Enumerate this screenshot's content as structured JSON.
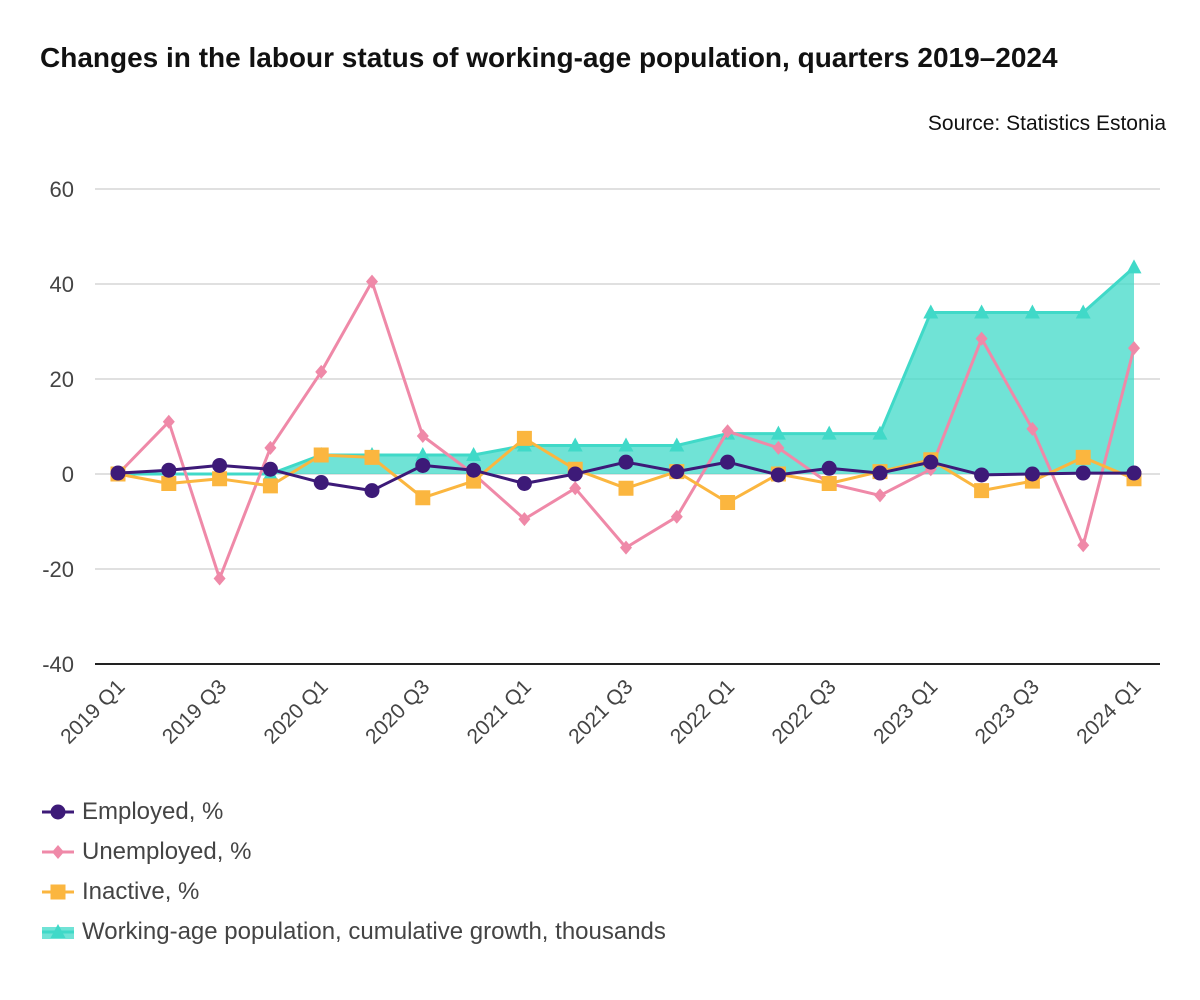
{
  "title": "Changes in the labour status of working-age population, quarters 2019–2024",
  "source": "Source: Statistics Estonia",
  "chart_data": {
    "type": "line",
    "categories": [
      "2019 Q1",
      "2019 Q2",
      "2019 Q3",
      "2019 Q4",
      "2020 Q1",
      "2020 Q2",
      "2020 Q3",
      "2020 Q4",
      "2021 Q1",
      "2021 Q2",
      "2021 Q3",
      "2021 Q4",
      "2022 Q1",
      "2022 Q2",
      "2022 Q3",
      "2022 Q4",
      "2023 Q1",
      "2023 Q2",
      "2023 Q3",
      "2023 Q4",
      "2024 Q1"
    ],
    "tick_labels": [
      "2019 Q1",
      "2019 Q3",
      "2020 Q1",
      "2020 Q3",
      "2021 Q1",
      "2021 Q3",
      "2022 Q1",
      "2022 Q3",
      "2023 Q1",
      "2023 Q3",
      "2024 Q1"
    ],
    "ylim": [
      -40,
      60
    ],
    "yticks": [
      60,
      40,
      20,
      0,
      -20,
      -40
    ],
    "grid": true,
    "legend_position": "bottom-left",
    "series": [
      {
        "name": "Working-age population, cumulative growth, thousands",
        "type": "area",
        "color": "#40d9c8",
        "marker": "triangle",
        "values": [
          0,
          0,
          0,
          0,
          4,
          4,
          4,
          4,
          6,
          6,
          6,
          6,
          8.5,
          8.5,
          8.5,
          8.5,
          34,
          34,
          34,
          34,
          43.5
        ]
      },
      {
        "name": "Unemployed, %",
        "type": "line",
        "color": "#ef89a8",
        "marker": "diamond",
        "values": [
          0,
          11,
          -22,
          5.5,
          21.5,
          40.5,
          8,
          0,
          -9.5,
          -3,
          -15.5,
          -9,
          9,
          5.5,
          -2,
          -4.5,
          1,
          28.5,
          9.5,
          -15,
          26.5
        ]
      },
      {
        "name": "Inactive, %",
        "type": "line",
        "color": "#fbb63f",
        "marker": "square",
        "values": [
          0,
          -2,
          -1,
          -2.5,
          4,
          3.5,
          -5,
          -1.5,
          7.5,
          1,
          -3,
          0.5,
          -6,
          0,
          -2,
          0.5,
          3,
          -3.5,
          -1.5,
          3.5,
          -1
        ]
      },
      {
        "name": "Employed, %",
        "type": "line",
        "color": "#3d1a78",
        "marker": "circle",
        "values": [
          0.2,
          0.8,
          1.8,
          1,
          -1.8,
          -3.5,
          1.8,
          0.8,
          -2,
          0,
          2.5,
          0.5,
          2.5,
          -0.2,
          1.2,
          0.2,
          2.5,
          -0.2,
          0,
          0.2,
          0.2
        ]
      }
    ],
    "legend_order": [
      "Employed, %",
      "Unemployed, %",
      "Inactive, %",
      "Working-age population, cumulative growth, thousands"
    ]
  }
}
